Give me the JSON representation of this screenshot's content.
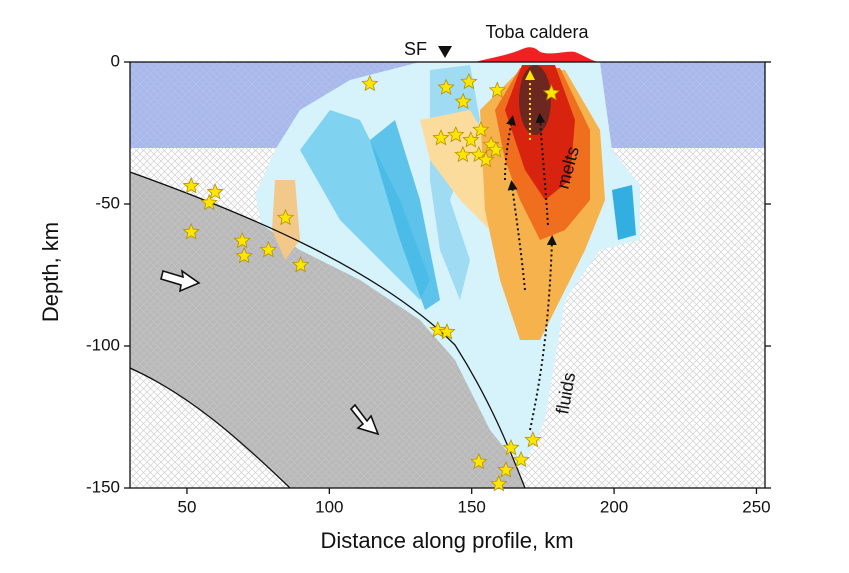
{
  "chart_data": {
    "type": "scatter",
    "x_label": "Distance along profile, km",
    "y_label": "Depth, km",
    "annotations": [
      "SF",
      "Toba caldera",
      "melts",
      "fluids"
    ],
    "xlim": [
      30,
      253
    ],
    "ylim": [
      -150,
      0
    ],
    "xticks": [
      50,
      100,
      150,
      200,
      250
    ],
    "yticks": [
      0,
      -50,
      -100,
      -150
    ],
    "color": "#ffe600",
    "x": [
      114.2,
      141,
      149,
      147,
      159,
      178,
      139.2,
      144.4,
      149.7,
      153.2,
      156.8,
      146.9,
      152.5,
      158.5,
      155,
      51.5,
      59.9,
      57.8,
      84.6,
      51.5,
      69.4,
      70.1,
      78.6,
      89.9,
      138.1,
      141.3,
      171.5,
      163.8,
      167.3,
      152.5,
      162,
      159.5
    ],
    "values": [
      -7.7,
      -9,
      -7,
      -14,
      -10,
      -11,
      -26.8,
      -25.7,
      -27.5,
      -23.9,
      -29.2,
      -32.7,
      -32.7,
      -31,
      -34.5,
      -43.7,
      -45.8,
      -49.6,
      -54.9,
      -59.9,
      -63,
      -68.3,
      -66.2,
      -71.5,
      -94.4,
      -95.1,
      -133.1,
      -135.9,
      -140.1,
      -140.8,
      -143.7,
      -148.6
    ]
  }
}
